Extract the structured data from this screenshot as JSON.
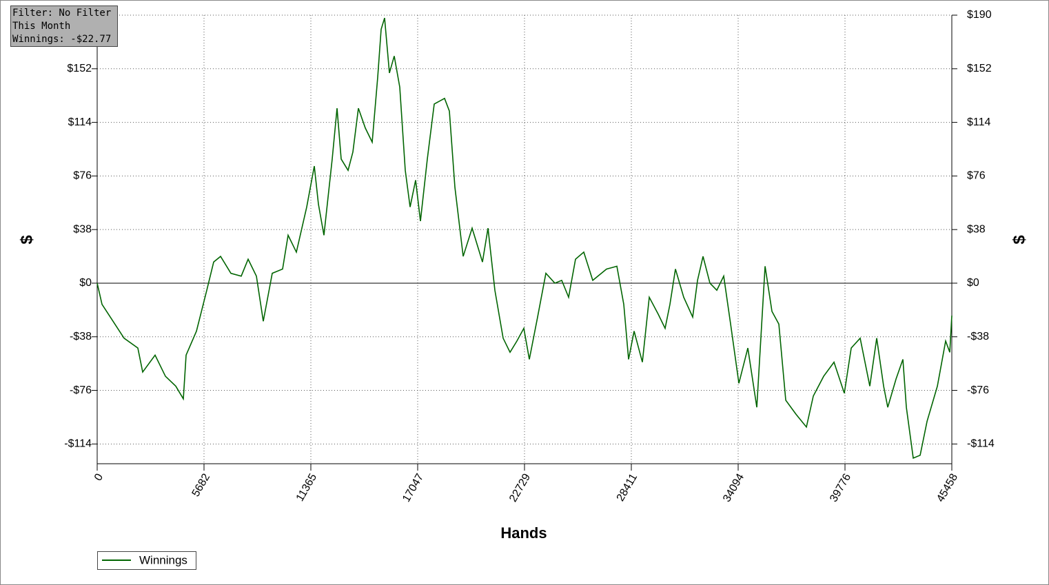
{
  "chart_data": {
    "type": "line",
    "x_label": "Hands",
    "y_label": "$",
    "y2_label": "$",
    "annotations": [
      "Filter: No Filter",
      "This Month",
      "Winnings: -$22.77"
    ],
    "grid": true,
    "legend": "bottom-left",
    "xlim": [
      0,
      45458
    ],
    "xticks": [
      0,
      5682,
      11365,
      17047,
      22729,
      28411,
      34094,
      39776,
      45458
    ],
    "ylim": [
      -128,
      190
    ],
    "yticks": [
      {
        "value": -114,
        "label": "-$114"
      },
      {
        "value": -76,
        "label": "-$76"
      },
      {
        "value": -38,
        "label": "-$38"
      },
      {
        "value": 0,
        "label": "$0"
      },
      {
        "value": 38,
        "label": "$38"
      },
      {
        "value": 76,
        "label": "$76"
      },
      {
        "value": 114,
        "label": "$114"
      },
      {
        "value": 152,
        "label": "$152"
      },
      {
        "value": 190,
        "label": "$190"
      }
    ],
    "y2lim": [
      -128,
      190
    ],
    "y2ticks": [
      {
        "value": -114,
        "label": "-$114"
      },
      {
        "value": -76,
        "label": "-$76"
      },
      {
        "value": -38,
        "label": "-$38"
      },
      {
        "value": 0,
        "label": "$0"
      },
      {
        "value": 38,
        "label": "$38"
      },
      {
        "value": 76,
        "label": "$76"
      },
      {
        "value": 114,
        "label": "$114"
      },
      {
        "value": 152,
        "label": "$152"
      },
      {
        "value": 190,
        "label": "$190"
      }
    ],
    "x": [
      0,
      257,
      696,
      1430,
      2163,
      2420,
      3080,
      3630,
      4180,
      4583,
      4730,
      5280,
      5830,
      6196,
      6563,
      7113,
      7662,
      8029,
      8469,
      8835,
      9312,
      9862,
      10155,
      10595,
      11145,
      11548,
      11768,
      12061,
      12501,
      12758,
      12978,
      13345,
      13601,
      13894,
      14261,
      14628,
      14921,
      15104,
      15287,
      15544,
      15800,
      16094,
      16387,
      16644,
      16937,
      17194,
      17560,
      17927,
      18477,
      18733,
      19027,
      19467,
      19943,
      20493,
      20787,
      21153,
      21593,
      21960,
      22326,
      22693,
      22986,
      23426,
      23866,
      24343,
      24709,
      25076,
      25442,
      25882,
      26359,
      27092,
      27642,
      28009,
      28265,
      28559,
      28999,
      29365,
      29842,
      30208,
      30465,
      30758,
      31198,
      31675,
      31932,
      32225,
      32592,
      32958,
      33325,
      33692,
      34132,
      34608,
      35085,
      35525,
      35891,
      36258,
      36625,
      37175,
      37724,
      38091,
      38641,
      39191,
      39740,
      40107,
      40583,
      41096,
      41463,
      41830,
      42050,
      42490,
      42856,
      43040,
      43406,
      43773,
      44140,
      44690,
      45129,
      45349,
      45458
    ],
    "series": [
      {
        "name": "Winnings",
        "color": "#006400",
        "values": [
          0,
          -15,
          -24,
          -39,
          -46,
          -63,
          -51,
          -66,
          -73,
          -82,
          -51,
          -34,
          -5,
          15,
          19,
          7,
          5,
          17,
          5,
          -27,
          7,
          10,
          34,
          22,
          54,
          83,
          56,
          34,
          88,
          124,
          88,
          80,
          93,
          124,
          110,
          100,
          146,
          180,
          188,
          149,
          161,
          139,
          80,
          54,
          73,
          44,
          88,
          127,
          131,
          122,
          68,
          19,
          39,
          15,
          39,
          -5,
          -39,
          -49,
          -41,
          -32,
          -54,
          -24,
          7,
          0,
          2,
          -10,
          17,
          22,
          2,
          10,
          12,
          -15,
          -54,
          -34,
          -56,
          -10,
          -22,
          -32,
          -15,
          10,
          -10,
          -24,
          2,
          19,
          0,
          -5,
          5,
          -29,
          -71,
          -46,
          -88,
          12,
          -20,
          -29,
          -83,
          -93,
          -102,
          -80,
          -66,
          -56,
          -78,
          -46,
          -39,
          -73,
          -39,
          -73,
          -88,
          -68,
          -54,
          -88,
          -124,
          -122,
          -98,
          -73,
          -41,
          -49,
          -23
        ]
      }
    ]
  }
}
